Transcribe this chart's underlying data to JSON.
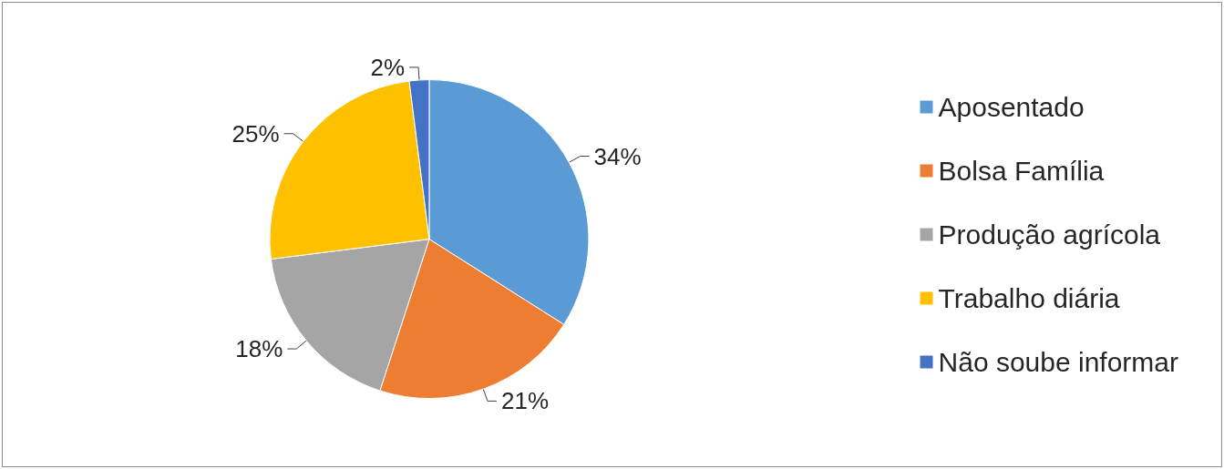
{
  "chart_data": {
    "type": "pie",
    "categories": [
      "Aposentado",
      "Bolsa Família",
      "Produção agrícola",
      "Trabalho diária",
      "Não soube informar"
    ],
    "values": [
      34,
      21,
      18,
      25,
      2
    ],
    "value_labels": [
      "34%",
      "21%",
      "18%",
      "25%",
      "2%"
    ],
    "colors": [
      "#5b9bd5",
      "#ed7d31",
      "#a5a5a5",
      "#ffc000",
      "#4472c4"
    ],
    "legend": "right"
  }
}
